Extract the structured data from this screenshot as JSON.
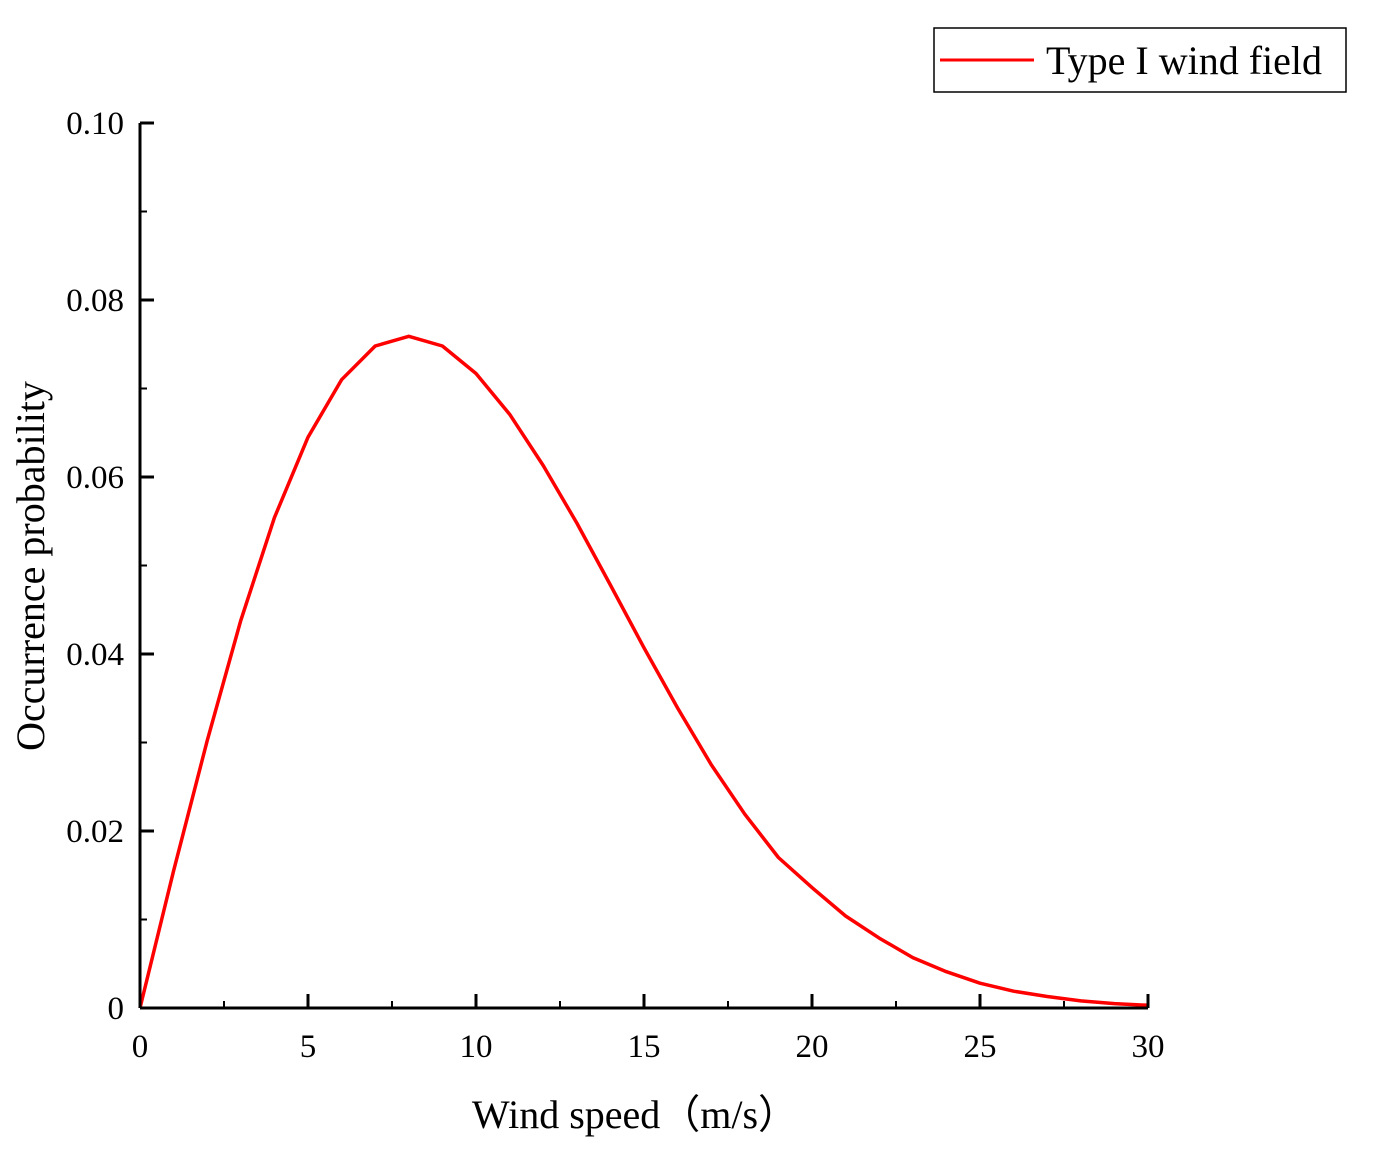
{
  "chart_data": {
    "type": "line",
    "title": "",
    "xlabel": "Wind speed（m/s）",
    "ylabel": "Occurrence probability",
    "xlim": [
      0,
      30
    ],
    "ylim": [
      0,
      0.1
    ],
    "xticks": [
      0,
      5,
      10,
      15,
      20,
      25,
      30
    ],
    "xtick_labels": [
      "0",
      "5",
      "10",
      "15",
      "20",
      "25",
      "30"
    ],
    "yticks": [
      0,
      0.02,
      0.04,
      0.06,
      0.08,
      0.1
    ],
    "ytick_labels": [
      "0",
      "0.02",
      "0.04",
      "0.06",
      "0.08",
      "0.10"
    ],
    "grid": false,
    "legend_position": "top-right",
    "series": [
      {
        "name": "Type I wind field",
        "color": "#ff0000",
        "x": [
          0,
          1,
          2,
          3,
          4,
          5,
          6,
          7,
          8,
          9,
          10,
          11,
          12,
          13,
          14,
          15,
          16,
          17,
          18,
          19,
          20,
          21,
          22,
          23,
          24,
          25,
          26,
          27,
          28,
          29,
          30
        ],
        "y": [
          0,
          0.0155,
          0.0302,
          0.0438,
          0.0554,
          0.0645,
          0.071,
          0.0748,
          0.0759,
          0.0748,
          0.0717,
          0.0671,
          0.0613,
          0.0548,
          0.0478,
          0.0407,
          0.0339,
          0.0275,
          0.0219,
          0.017,
          0.0136,
          0.0104,
          0.0079,
          0.0057,
          0.0041,
          0.0028,
          0.0019,
          0.0013,
          0.0008,
          0.0005,
          0.0003
        ]
      }
    ]
  }
}
